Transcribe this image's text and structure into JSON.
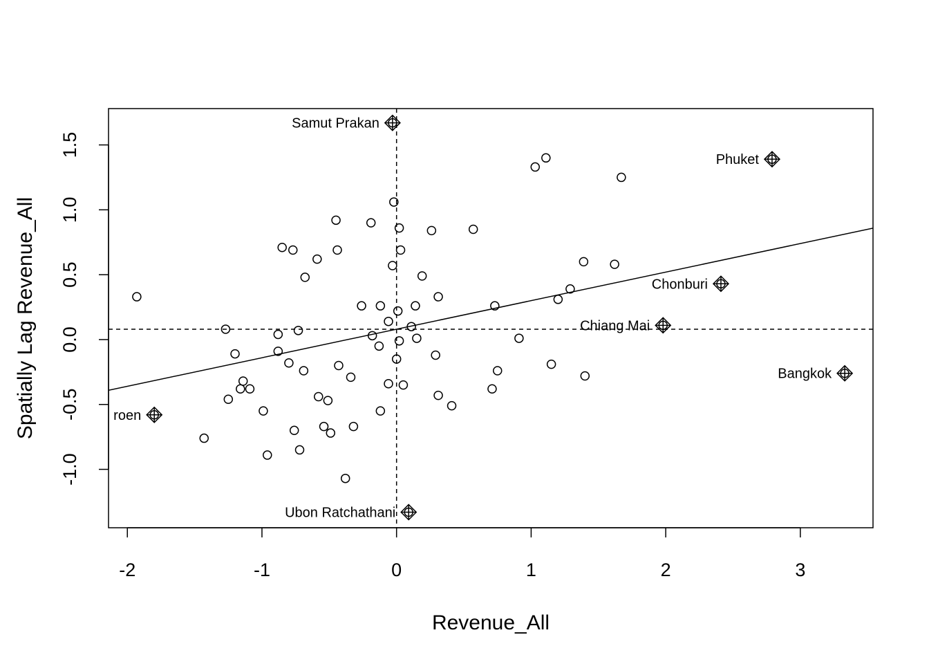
{
  "chart_data": {
    "type": "scatter",
    "title": "",
    "xlabel": "Revenue_All",
    "ylabel": "Spatially Lag Revenue_All",
    "xlim": [
      -2.14,
      3.54
    ],
    "ylim": [
      -1.45,
      1.78
    ],
    "x_ticks": [
      -2,
      -1,
      0,
      1,
      2,
      3
    ],
    "y_ticks": [
      -1.0,
      -0.5,
      0.0,
      0.5,
      1.0,
      1.5
    ],
    "x_tick_labels": [
      "-2",
      "-1",
      "0",
      "1",
      "2",
      "3"
    ],
    "y_tick_labels": [
      "-1.0",
      "-0.5",
      "0.0",
      "0.5",
      "1.0",
      "1.5"
    ],
    "grid": false,
    "mean_x": 0.0,
    "mean_y": 0.08,
    "regression": {
      "slope": 0.22,
      "intercept": 0.08
    },
    "points": [
      {
        "x": -1.93,
        "y": 0.33
      },
      {
        "x": -1.43,
        "y": -0.76
      },
      {
        "x": -1.27,
        "y": 0.08
      },
      {
        "x": -1.25,
        "y": -0.46
      },
      {
        "x": -1.2,
        "y": -0.11
      },
      {
        "x": -1.16,
        "y": -0.38
      },
      {
        "x": -1.14,
        "y": -0.32
      },
      {
        "x": -1.09,
        "y": -0.38
      },
      {
        "x": -0.99,
        "y": -0.55
      },
      {
        "x": -0.96,
        "y": -0.89
      },
      {
        "x": -0.88,
        "y": 0.04
      },
      {
        "x": -0.88,
        "y": -0.09
      },
      {
        "x": -0.85,
        "y": 0.71
      },
      {
        "x": -0.8,
        "y": -0.18
      },
      {
        "x": -0.77,
        "y": 0.69
      },
      {
        "x": -0.76,
        "y": -0.7
      },
      {
        "x": -0.73,
        "y": 0.07
      },
      {
        "x": -0.72,
        "y": -0.85
      },
      {
        "x": -0.69,
        "y": -0.24
      },
      {
        "x": -0.68,
        "y": 0.48
      },
      {
        "x": -0.59,
        "y": 0.62
      },
      {
        "x": -0.58,
        "y": -0.44
      },
      {
        "x": -0.54,
        "y": -0.67
      },
      {
        "x": -0.51,
        "y": -0.47
      },
      {
        "x": -0.49,
        "y": -0.72
      },
      {
        "x": -0.45,
        "y": 0.92
      },
      {
        "x": -0.44,
        "y": 0.69
      },
      {
        "x": -0.43,
        "y": -0.2
      },
      {
        "x": -0.38,
        "y": -1.07
      },
      {
        "x": -0.34,
        "y": -0.29
      },
      {
        "x": -0.32,
        "y": -0.67
      },
      {
        "x": -0.26,
        "y": 0.26
      },
      {
        "x": -0.19,
        "y": 0.9
      },
      {
        "x": -0.18,
        "y": 0.03
      },
      {
        "x": -0.13,
        "y": -0.05
      },
      {
        "x": -0.12,
        "y": 0.26
      },
      {
        "x": -0.12,
        "y": -0.55
      },
      {
        "x": -0.06,
        "y": 0.14
      },
      {
        "x": -0.06,
        "y": -0.34
      },
      {
        "x": -0.03,
        "y": 0.57
      },
      {
        "x": -0.02,
        "y": 1.06
      },
      {
        "x": 0.0,
        "y": -0.15
      },
      {
        "x": 0.01,
        "y": 0.22
      },
      {
        "x": 0.02,
        "y": 0.86
      },
      {
        "x": 0.02,
        "y": -0.01
      },
      {
        "x": 0.03,
        "y": 0.69
      },
      {
        "x": 0.05,
        "y": -0.35
      },
      {
        "x": 0.11,
        "y": 0.1
      },
      {
        "x": 0.14,
        "y": 0.26
      },
      {
        "x": 0.15,
        "y": 0.01
      },
      {
        "x": 0.19,
        "y": 0.49
      },
      {
        "x": 0.26,
        "y": 0.84
      },
      {
        "x": 0.29,
        "y": -0.12
      },
      {
        "x": 0.31,
        "y": 0.33
      },
      {
        "x": 0.31,
        "y": -0.43
      },
      {
        "x": 0.41,
        "y": -0.51
      },
      {
        "x": 0.57,
        "y": 0.85
      },
      {
        "x": 0.71,
        "y": -0.38
      },
      {
        "x": 0.73,
        "y": 0.26
      },
      {
        "x": 0.75,
        "y": -0.24
      },
      {
        "x": 0.91,
        "y": 0.01
      },
      {
        "x": 1.03,
        "y": 1.33
      },
      {
        "x": 1.11,
        "y": 1.4
      },
      {
        "x": 1.15,
        "y": -0.19
      },
      {
        "x": 1.2,
        "y": 0.31
      },
      {
        "x": 1.29,
        "y": 0.39
      },
      {
        "x": 1.39,
        "y": 0.6
      },
      {
        "x": 1.4,
        "y": -0.28
      },
      {
        "x": 1.62,
        "y": 0.58
      },
      {
        "x": 1.67,
        "y": 1.25
      }
    ],
    "influential_points": [
      {
        "x": -0.03,
        "y": 1.67,
        "label": "Samut Prakan"
      },
      {
        "x": 2.79,
        "y": 1.39,
        "label": "Phuket"
      },
      {
        "x": 2.41,
        "y": 0.43,
        "label": "Chonburi"
      },
      {
        "x": 1.98,
        "y": 0.11,
        "label": "Chiang Mai"
      },
      {
        "x": 3.33,
        "y": -0.26,
        "label": "Bangkok"
      },
      {
        "x": -1.8,
        "y": -0.58,
        "label": "roen"
      },
      {
        "x": 0.09,
        "y": -1.33,
        "label": "Ubon Ratchathani"
      }
    ]
  }
}
